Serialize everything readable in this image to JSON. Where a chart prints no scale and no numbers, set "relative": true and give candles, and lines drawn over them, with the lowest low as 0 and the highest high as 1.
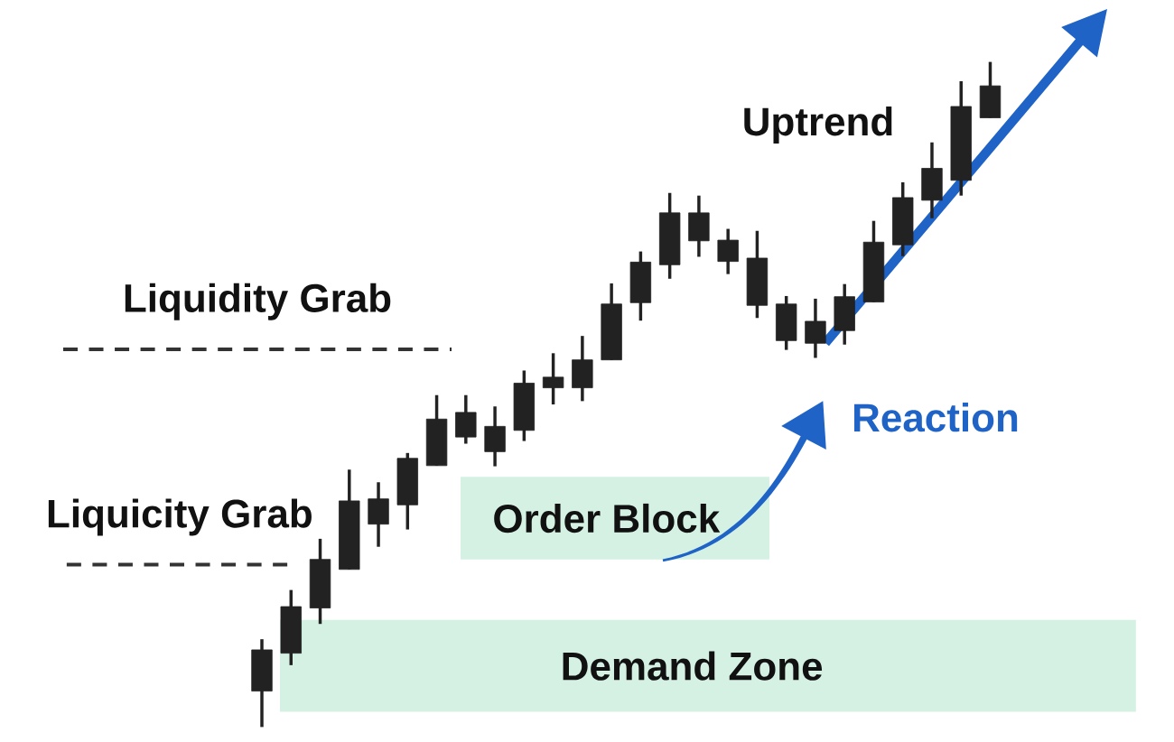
{
  "chart_data": {
    "type": "candlestick",
    "relative": true,
    "categories": [
      null,
      null,
      null,
      null,
      null,
      null,
      null,
      null,
      null,
      null,
      null,
      null,
      null,
      null,
      null,
      null,
      null,
      null,
      null,
      null,
      null,
      null,
      null,
      null,
      null,
      null
    ],
    "ohlc": [
      [
        0.054,
        0.132,
        0.0,
        0.116
      ],
      [
        0.111,
        0.206,
        0.093,
        0.181
      ],
      [
        0.179,
        0.283,
        0.155,
        0.252
      ],
      [
        0.237,
        0.387,
        0.237,
        0.34
      ],
      [
        0.305,
        0.368,
        0.271,
        0.343
      ],
      [
        0.334,
        0.412,
        0.297,
        0.404
      ],
      [
        0.393,
        0.499,
        0.393,
        0.463
      ],
      [
        0.436,
        0.499,
        0.426,
        0.473
      ],
      [
        0.414,
        0.482,
        0.392,
        0.452
      ],
      [
        0.446,
        0.536,
        0.43,
        0.517
      ],
      [
        0.51,
        0.562,
        0.485,
        0.526
      ],
      [
        0.51,
        0.588,
        0.49,
        0.552
      ],
      [
        0.552,
        0.667,
        0.552,
        0.636
      ],
      [
        0.638,
        0.715,
        0.611,
        0.699
      ],
      [
        0.695,
        0.803,
        0.674,
        0.773
      ],
      [
        0.731,
        0.799,
        0.707,
        0.773
      ],
      [
        0.7,
        0.749,
        0.681,
        0.732
      ],
      [
        0.634,
        0.746,
        0.615,
        0.705
      ],
      [
        0.581,
        0.648,
        0.567,
        0.636
      ],
      [
        0.577,
        0.644,
        0.555,
        0.61
      ],
      [
        0.596,
        0.666,
        0.575,
        0.647
      ],
      [
        0.639,
        0.761,
        0.639,
        0.729
      ],
      [
        0.725,
        0.819,
        0.708,
        0.796
      ],
      [
        0.792,
        0.879,
        0.765,
        0.84
      ],
      [
        0.822,
        0.971,
        0.799,
        0.933
      ],
      [
        0.916,
        1.0,
        0.916,
        0.964
      ]
    ],
    "color": "#222222",
    "ref_lines": [
      {
        "axis": "y",
        "value": 0.568,
        "label": "Liquidity Grab",
        "color": "#333333",
        "line_style": "dashed"
      },
      {
        "axis": "y",
        "value": 0.244,
        "label": "Liquicity Grab",
        "color": "#333333",
        "line_style": "dashed"
      }
    ],
    "bands": [
      {
        "axis": "y",
        "from": 0.023,
        "to": 0.161,
        "label": "Demand Zone",
        "color": "#d4f1e4"
      },
      {
        "axis": "y",
        "from": 0.252,
        "to": 0.376,
        "label": "Order Block",
        "color": "#d4f1e4"
      }
    ],
    "annotations": [
      "Uptrend",
      "Reaction"
    ]
  }
}
